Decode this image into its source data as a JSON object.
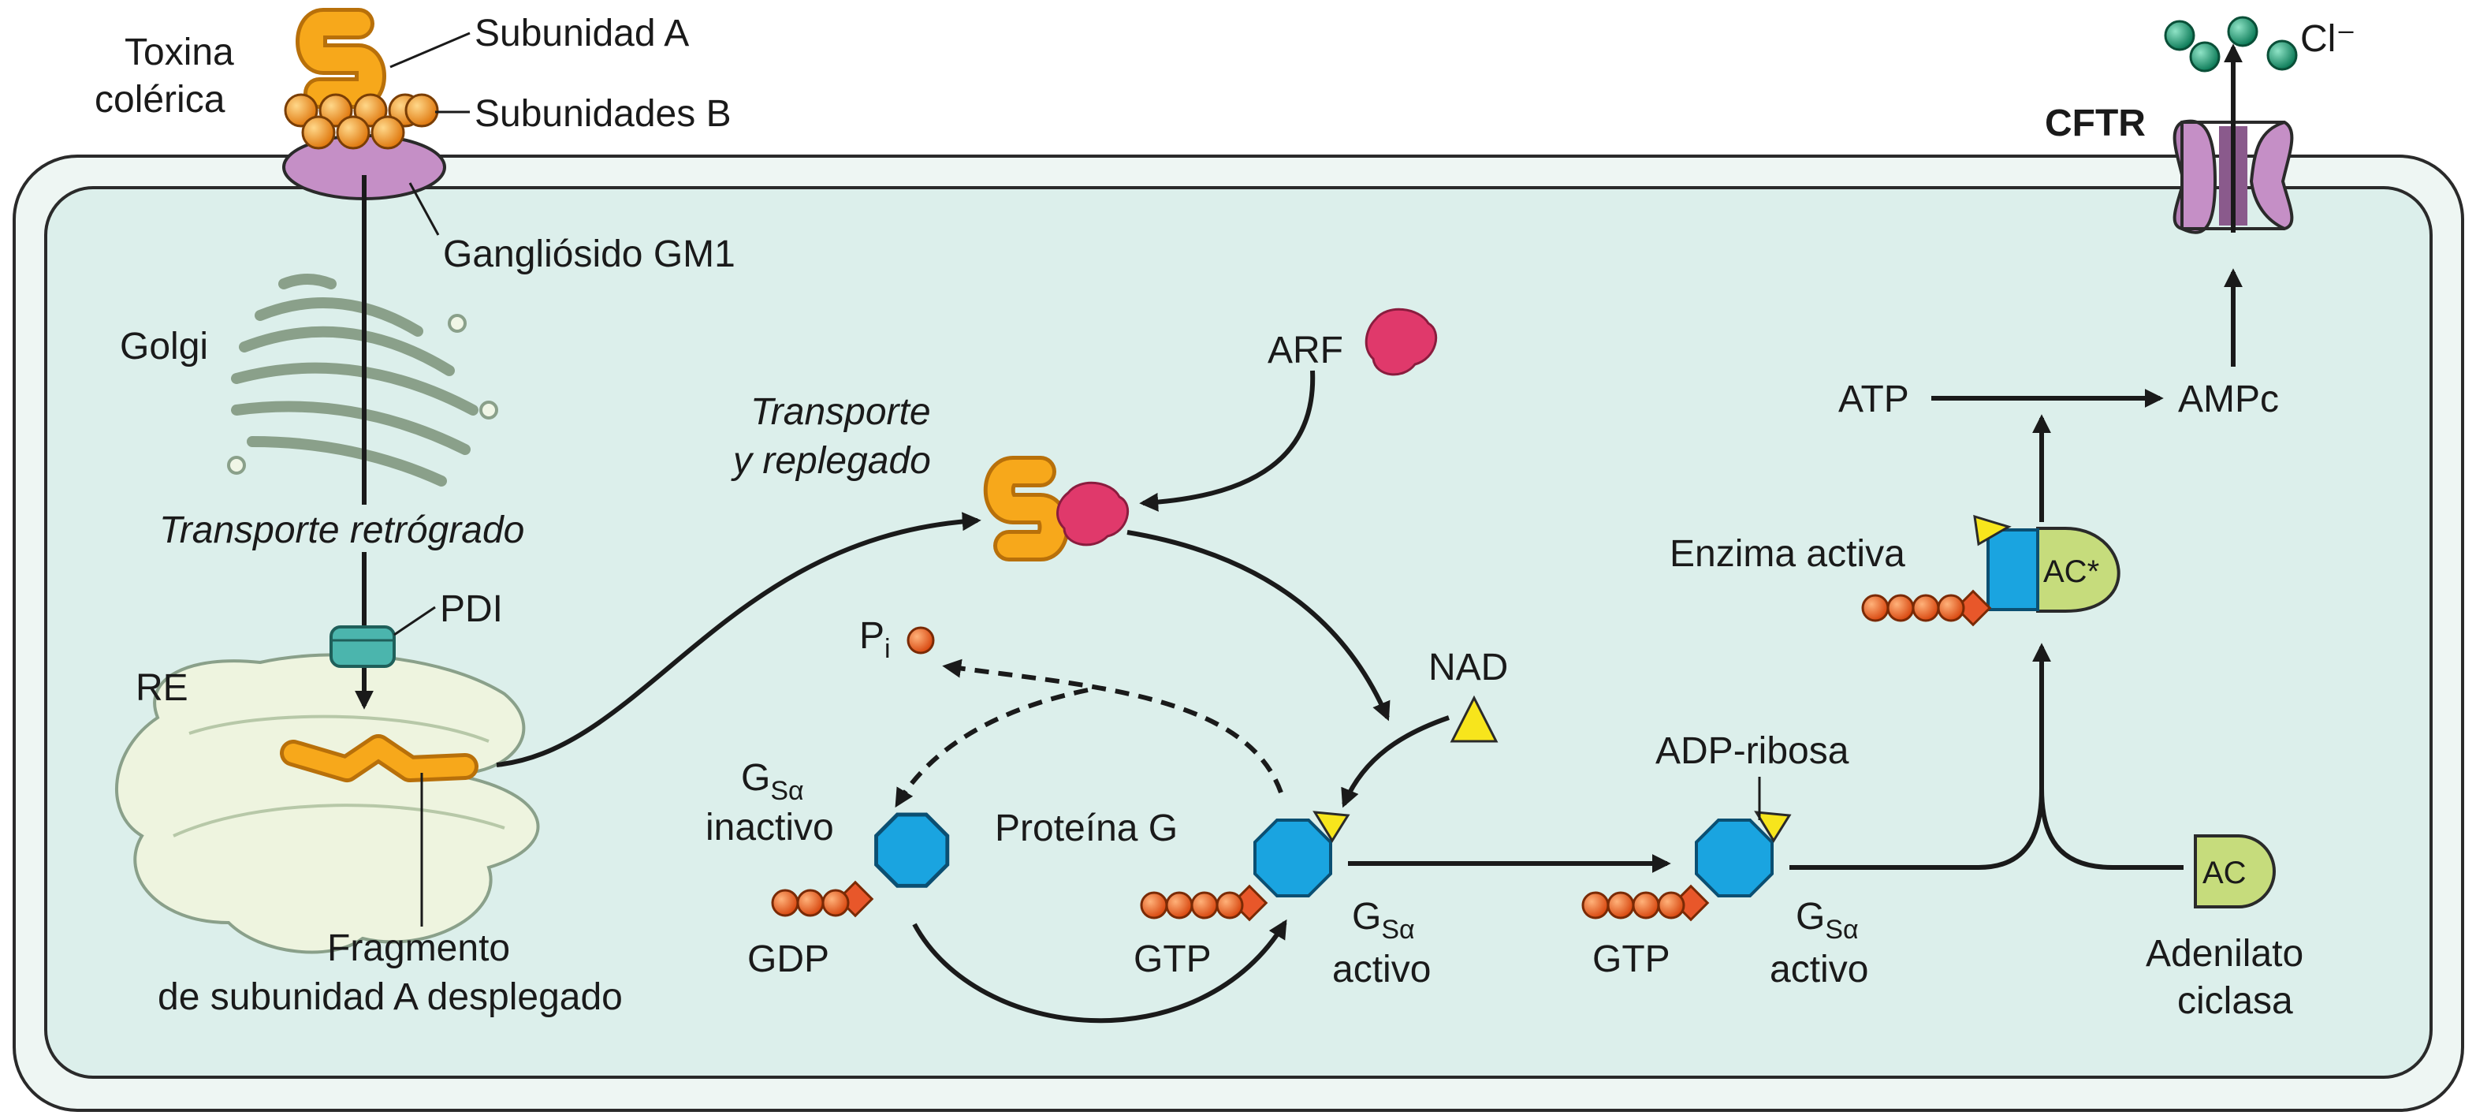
{
  "labels": {
    "toxin_line1": "Toxina",
    "toxin_line2": "colérica",
    "subunit_a": "Subunidad A",
    "subunits_b": "Subunidades B",
    "ganglioside": "Gangliósido GM1",
    "golgi": "Golgi",
    "retro_transport": "Transporte retrógrado",
    "pdi": "PDI",
    "er": "RE",
    "fragment_line1": "Fragmento",
    "fragment_line2": "de subunidad A desplegado",
    "transport_line1": "Transporte",
    "transport_line2": "y replegado",
    "arf": "ARF",
    "pi_main": "P",
    "pi_sub": "i",
    "nad": "NAD",
    "gs_main": "G",
    "gs_sub": "Sα",
    "inactive": "inactivo",
    "gdp": "GDP",
    "g_protein": "Proteína G",
    "gtp": "GTP",
    "active": "activo",
    "adp_ribose": "ADP-ribosa",
    "active_enzyme": "Enzima activa",
    "ac_star": "AC*",
    "ac": "AC",
    "adenylate_line1": "Adenilato",
    "adenylate_line2": "ciclasa",
    "atp": "ATP",
    "camp": "AMPc",
    "cftr": "CFTR",
    "cl": "Cl⁻"
  },
  "colors": {
    "cell_fill": "#e3f1ee",
    "toxin_orange": "#f7a81b",
    "gs_blue": "#1aa4e0",
    "diamond_red": "#e8572a",
    "nad_yellow": "#f7e51c",
    "arf_pink": "#e0396b",
    "pdi_teal": "#4bb5ad",
    "gm1_purple": "#c58fc6",
    "ac_green": "#c6dc7c",
    "chloride_green": "#1a9a72"
  }
}
